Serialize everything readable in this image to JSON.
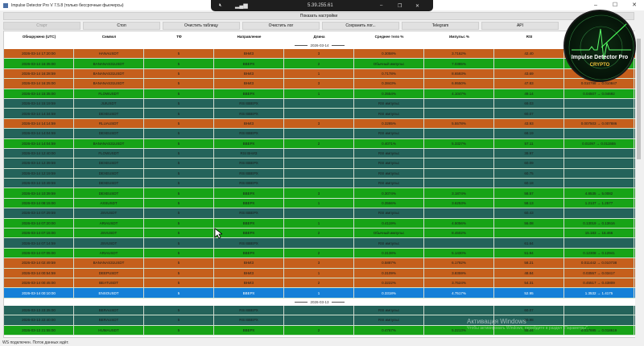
{
  "window": {
    "title": "Impulse Detector Pro V 7.5.8 (только бессрочные фьючерсы)"
  },
  "overlay": {
    "ip": "5.39.255.61"
  },
  "settings_label": "Показать настройки",
  "toolbar": [
    {
      "label": "Старт",
      "disabled": true
    },
    {
      "label": "Стоп"
    },
    {
      "label": "Очистить таблицу"
    },
    {
      "label": "Очистить лог"
    },
    {
      "label": "Сохранить лог..."
    },
    {
      "label": "Telegram"
    },
    {
      "label": "API"
    }
  ],
  "logo": {
    "title": "Impulse Detector Pro",
    "subtitle": "CRYPTO"
  },
  "colors": {
    "down": "#c55f1c",
    "up": "#17a317",
    "rsi": "#24635a",
    "latest": "#1580d8"
  },
  "table": {
    "columns": [
      "Обнаружено (UTC)",
      "Символ",
      "ТФ",
      "Направление",
      "Длина",
      "Среднее тело %",
      "Импульс %",
      "RSI",
      ""
    ],
    "groups": [
      {
        "date": "2026-03-14",
        "rows": [
          [
            "2026-03-14 17:20:00",
            "HANAUSDT",
            "5",
            "ВНИЗ",
            "3",
            "0.3058%",
            "3.7162%",
            "42.40",
            "",
            "down"
          ],
          [
            "2026-03-14 16:35:00",
            "BANANAS31USDT",
            "5",
            "ВВЕРХ",
            "2",
            "Обычный импульс",
            "7.0385%",
            "",
            "",
            "up"
          ],
          [
            "2026-03-14 16:28:59",
            "BANANAS31USDT",
            "5",
            "ВНИЗ",
            "1",
            "0.7178%",
            "8.6593%",
            "43.69",
            "",
            "down"
          ],
          [
            "2026-03-14 16:25:00",
            "BANANAS31USDT",
            "5",
            "ВНИЗ",
            "3",
            "0.3843%",
            "6.9550%",
            "47.83",
            "0.010798 → 0.010847",
            "down"
          ],
          [
            "2026-03-14 15:35:00",
            "FLOWUSDT",
            "5",
            "ВВЕРХ",
            "1",
            "0.3554%",
            "4.1047%",
            "49.14",
            "0.04507 → 0.04692",
            "up"
          ],
          [
            "2026-03-14 15:19:59",
            "JUIUSDT",
            "5",
            "RSI ВВЕРХ",
            "",
            "RSI импульс",
            "",
            "69.03",
            "",
            "rsi"
          ],
          [
            "2026-03-14 14:34:59",
            "DEXEUSDT",
            "5",
            "RSI ВВЕРХ",
            "",
            "RSI импульс",
            "",
            "60.07",
            "",
            "rsi"
          ],
          [
            "2026-03-14 14:14:59",
            "RLUAUSDT",
            "5",
            "ВНИЗ",
            "3",
            "0.3285%",
            "5.5578%",
            "43.93",
            "0.007503 → 0.007886",
            "down"
          ],
          [
            "2026-03-14 14:04:59",
            "DEXEUSDT",
            "5",
            "RSI ВВЕРХ",
            "",
            "RSI импульс",
            "",
            "68.19",
            "",
            "rsi"
          ],
          [
            "2026-03-14 14:04:59",
            "BANANAS31USDT",
            "5",
            "ВВЕРХ",
            "2",
            "0.4071%",
            "5.3327%",
            "57.11",
            "0.01097 → 0.011555",
            "up"
          ],
          [
            "2026-03-14 12:40:00",
            "FLOWUSDT",
            "5",
            "RSI ВНИЗ",
            "",
            "RSI импульс",
            "",
            "39.97",
            "",
            "rsi"
          ],
          [
            "2026-03-14 12:39:59",
            "DEXEUSDT",
            "5",
            "RSI ВВЕРХ",
            "",
            "RSI импульс",
            "",
            "60.09",
            "",
            "rsi"
          ],
          [
            "2026-03-14 12:19:59",
            "DEXEUSDT",
            "5",
            "RSI ВВЕРХ",
            "",
            "RSI импульс",
            "",
            "60.75",
            "",
            "rsi"
          ],
          [
            "2026-03-14 10:49:59",
            "DEXEUSDT",
            "5",
            "RSI ВВЕРХ",
            "",
            "RSI импульс",
            "",
            "60.18",
            "",
            "rsi"
          ],
          [
            "2026-03-14 10:39:59",
            "DEXEUSDT",
            "5",
            "ВВЕРХ",
            "3",
            "0.3074%",
            "3.1874%",
            "58.57",
            "4.8535 → 5.0082",
            "up"
          ],
          [
            "2026-03-14 08:15:00",
            "AXSUSDT",
            "5",
            "ВВЕРХ",
            "1",
            "0.3566%",
            "3.6253%",
            "58.13",
            "1.2137 → 1.2577",
            "up"
          ],
          [
            "2026-03-14 07:29:59",
            "JSVUSDT",
            "5",
            "RSI ВВЕРХ",
            "",
            "RSI импульс",
            "",
            "60.43",
            "",
            "rsi"
          ],
          [
            "2026-03-14 07:20:00",
            "ARIAUSDT",
            "5",
            "ВВЕРХ",
            "1",
            "0.4119%",
            "4.5056%",
            "56.08",
            "0.13019 → 0.13616",
            "up"
          ],
          [
            "2026-03-14 07:15:00",
            "JSVUSDT",
            "5",
            "ВВЕРХ",
            "2",
            "Обычный импульс",
            "8.4502%",
            "",
            "15.183 → 16.466",
            "up"
          ],
          [
            "2026-03-14 07:14:59",
            "JSVUSDT",
            "5",
            "RSI ВВЕРХ",
            "",
            "RSI импульс",
            "",
            "61.64",
            "",
            "rsi"
          ],
          [
            "2026-03-14 07:05:00",
            "ARIAUSDT",
            "5",
            "ВВЕРХ",
            "2",
            "0.3138%",
            "5.1430%",
            "51.94",
            "0.12308 → 0.12941",
            "up"
          ],
          [
            "2026-03-14 02:49:59",
            "BANANAS31USDT",
            "5",
            "ВНИЗ",
            "3",
            "0.5887%",
            "6.1792%",
            "58.21",
            "0.011442 → 0.010738",
            "down"
          ],
          [
            "2026-03-14 00:54:59",
            "DEEPUSDT",
            "5",
            "ВНИЗ",
            "1",
            "0.3109%",
            "3.8359%",
            "48.84",
            "0.03557 → 0.03417",
            "down"
          ],
          [
            "2026-03-14 00:45:00",
            "BEATUSDT",
            "5",
            "ВНИЗ",
            "2",
            "0.3222%",
            "3.7524%",
            "54.31",
            "0.45517 → 0.43809",
            "down"
          ],
          [
            "2026-03-14 00:10:00",
            "ENSOUSDT",
            "5",
            "ВВЕРХ",
            "1",
            "0.3318%",
            "4.7517%",
            "52.95",
            "1.3532 → 1.4175",
            "latest"
          ]
        ]
      },
      {
        "date": "2026-03-13",
        "rows": [
          [
            "2026-03-13 23:35:00",
            "BERAUSDT",
            "5",
            "RSI ВВЕРХ",
            "",
            "RSI импульс",
            "",
            "60.07",
            "",
            "rsi"
          ],
          [
            "2026-03-13 22:40:00",
            "BERAUSDT",
            "5",
            "RSI ВВЕРХ",
            "",
            "RSI импульс",
            "",
            "60.98",
            "",
            "rsi"
          ],
          [
            "2026-03-13 21:55:00",
            "HUMAUSDT",
            "5",
            "ВВЕРХ",
            "2",
            "0.4767%",
            "5.2213%",
            "55.04",
            "0.017695 → 0.018619",
            "up"
          ]
        ]
      }
    ]
  },
  "status": "WS подключен. Поток данных идёт.",
  "watermark": {
    "title": "Активация Windows",
    "subtitle": "Чтобы активировать Windows, перейдите в раздел \"Параметры\"."
  }
}
